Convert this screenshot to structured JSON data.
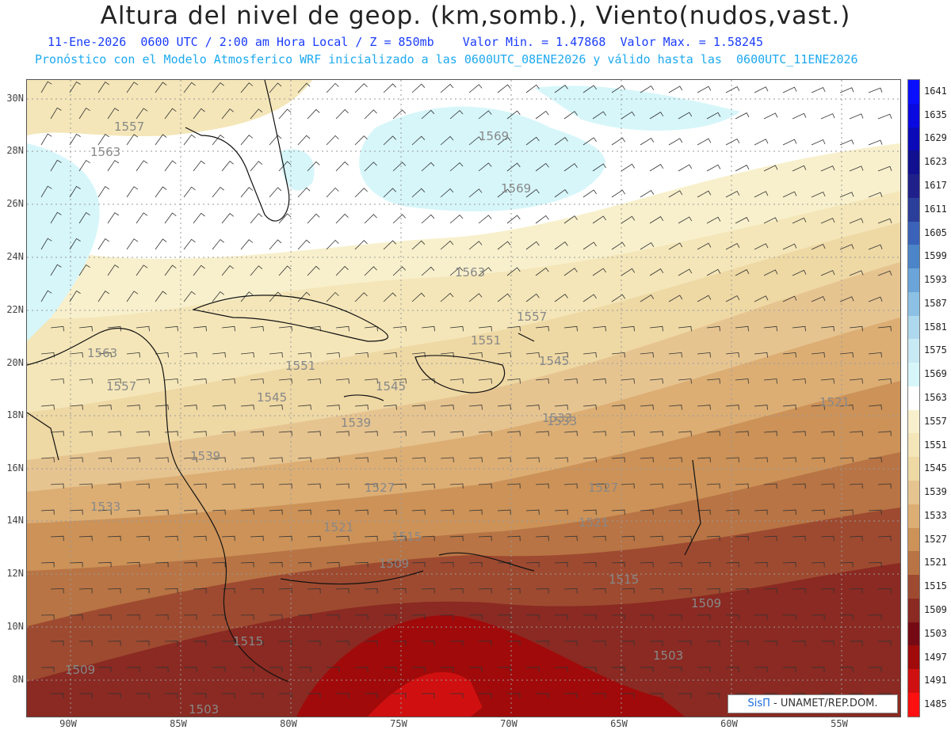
{
  "header": {
    "title": "Altura del nivel de geop. (km,somb.), Viento(nudos,vast.)",
    "line1": "11-Ene-2026  0600 UTC / 2:00 am Hora Local / Z = 850mb    Valor Min. = 1.47868  Valor Max. = 1.58245",
    "line2": "Pronóstico con el Modelo Atmosferico WRF inicializado a las 0600UTC_08ENE2026 y válido hasta las  0600UTC_11ENE2026"
  },
  "axes": {
    "lat_labels": [
      "30N",
      "28N",
      "26N",
      "24N",
      "22N",
      "20N",
      "18N",
      "16N",
      "14N",
      "12N",
      "10N",
      "8N"
    ],
    "lon_labels": [
      "90W",
      "85W",
      "80W",
      "75W",
      "70W",
      "65W",
      "60W",
      "55W"
    ]
  },
  "legend": {
    "levels": [
      "1641",
      "1635",
      "1629",
      "1623",
      "1617",
      "1611",
      "1605",
      "1599",
      "1593",
      "1587",
      "1581",
      "1575",
      "1569",
      "1563",
      "1557",
      "1551",
      "1545",
      "1539",
      "1533",
      "1527",
      "1521",
      "1515",
      "1509",
      "1503",
      "1497",
      "1491",
      "1485"
    ],
    "colors": [
      "#0a10ff",
      "#0a0ae0",
      "#0a0ab8",
      "#101090",
      "#20208a",
      "#2a3e9a",
      "#3a62b8",
      "#4c84c8",
      "#6aa4d8",
      "#8cc0e4",
      "#aed8ee",
      "#c8eaf4",
      "#d6f6fa",
      "#ffffff",
      "#f8f0cc",
      "#f4e6b8",
      "#eed8a4",
      "#e6c490",
      "#dcae74",
      "#cc9258",
      "#b87444",
      "#9e4a30",
      "#8a2a22",
      "#760a14",
      "#a00a0a",
      "#d01010",
      "#ff1010"
    ]
  },
  "contour_labels": [
    {
      "text": "1557"
    },
    {
      "text": "1563"
    },
    {
      "text": "1569"
    },
    {
      "text": "1569"
    },
    {
      "text": "1563"
    },
    {
      "text": "1557"
    },
    {
      "text": "1551"
    },
    {
      "text": "1563"
    },
    {
      "text": "1557"
    },
    {
      "text": "1551"
    },
    {
      "text": "1545"
    },
    {
      "text": "1545"
    },
    {
      "text": "1545"
    },
    {
      "text": "1539"
    },
    {
      "text": "1539"
    },
    {
      "text": "1533"
    },
    {
      "text": "1521"
    },
    {
      "text": "1527"
    },
    {
      "text": "1527"
    },
    {
      "text": "1521"
    },
    {
      "text": "1521"
    },
    {
      "text": "1515"
    },
    {
      "text": "1509"
    },
    {
      "text": "1515"
    },
    {
      "text": "1509"
    },
    {
      "text": "1515"
    },
    {
      "text": "1509"
    },
    {
      "text": "1503"
    },
    {
      "text": "1503"
    },
    {
      "text": "1533"
    },
    {
      "text": "1533"
    }
  ],
  "credit": {
    "sis": "SisΠ",
    "rest": "- UNAMET/REP.DOM."
  }
}
